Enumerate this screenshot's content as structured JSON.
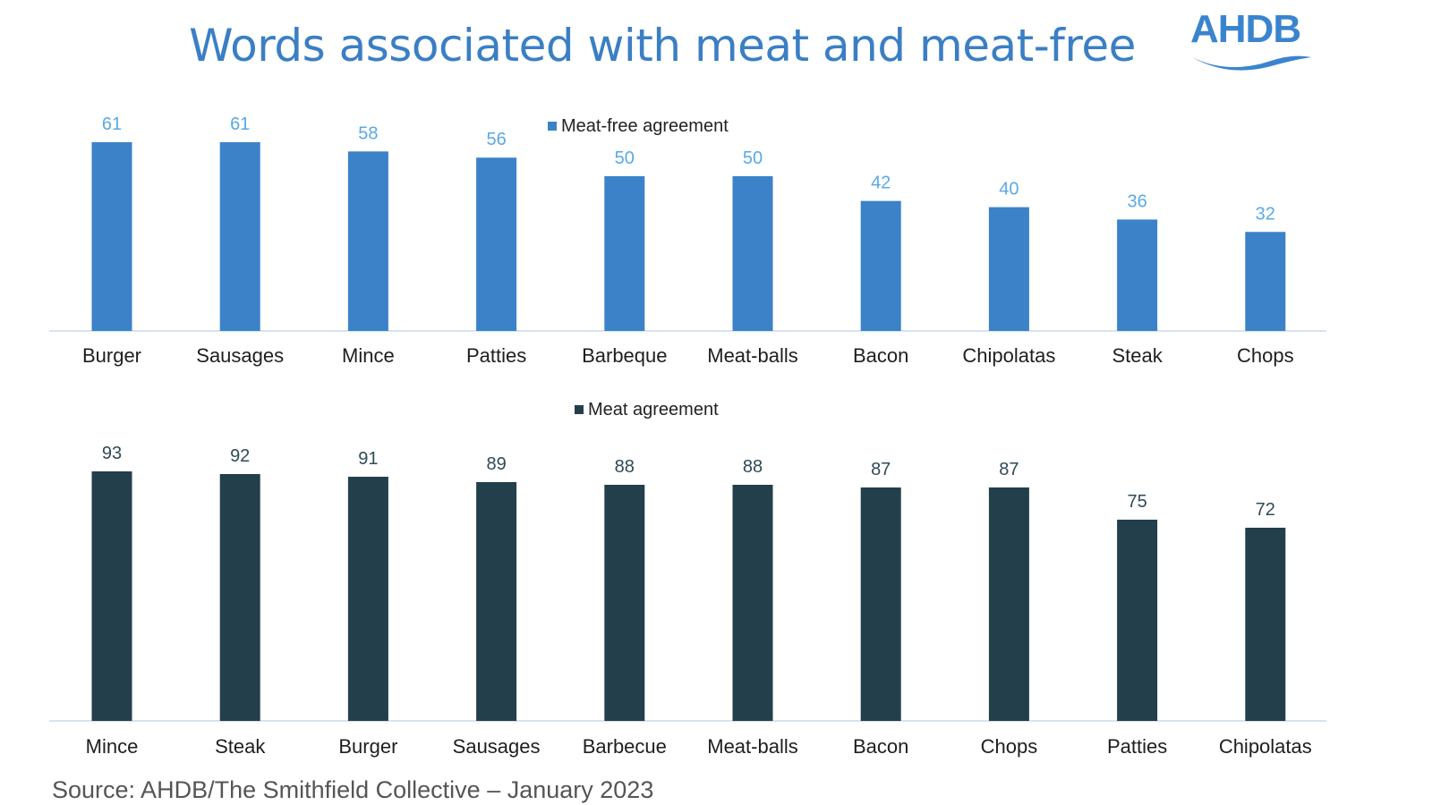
{
  "header": {
    "title": "Words associated with meat and meat-free",
    "logo_text": "AHDB"
  },
  "source": "Source: AHDB/The Smithfield Collective – January 2023",
  "colors": {
    "title": "#3a7fc4",
    "meat_free": "#3b82c8",
    "meat_free_label": "#5aa9e6",
    "meat": "#243f4c",
    "meat_label": "#2f4a57",
    "axis": "#d6e4f0"
  },
  "chart_data": [
    {
      "type": "bar",
      "title": "",
      "legend": "Meat-free agreement",
      "categories": [
        "Burger",
        "Sausages",
        "Mince",
        "Patties",
        "Barbeque",
        "Meat-balls",
        "Bacon",
        "Chipolatas",
        "Steak",
        "Chops"
      ],
      "values": [
        61,
        61,
        58,
        56,
        50,
        50,
        42,
        40,
        36,
        32
      ],
      "ylim": [
        0,
        70
      ],
      "xlabel": "",
      "ylabel": "",
      "grid": false,
      "legend_position": "top-center"
    },
    {
      "type": "bar",
      "title": "",
      "legend": "Meat agreement",
      "categories": [
        "Mince",
        "Steak",
        "Burger",
        "Sausages",
        "Barbecue",
        "Meat-balls",
        "Bacon",
        "Chops",
        "Patties",
        "Chipolatas"
      ],
      "values": [
        93,
        92,
        91,
        89,
        88,
        88,
        87,
        87,
        75,
        72
      ],
      "ylim": [
        0,
        100
      ],
      "xlabel": "",
      "ylabel": "",
      "grid": false,
      "legend_position": "top-center"
    }
  ]
}
